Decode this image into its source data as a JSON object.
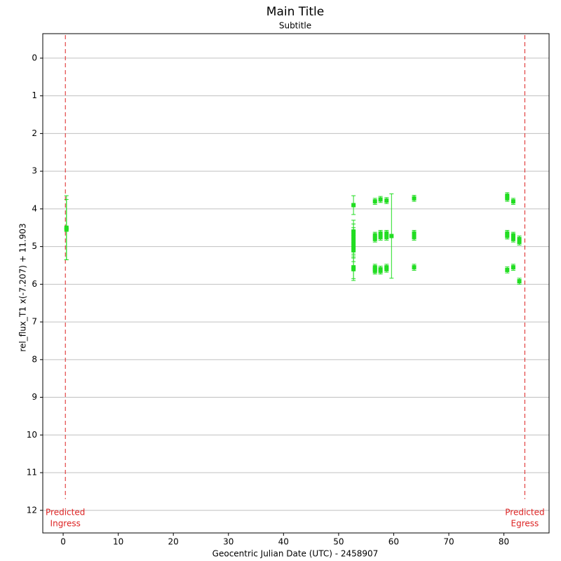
{
  "chart_data": {
    "type": "scatter",
    "title": "Main Title",
    "subtitle": "Subtitle",
    "x_label": "Geocentric Julian Date (UTC) - 2458907",
    "y_label": "rel_flux_T1 x(-7.207) + 11.903",
    "xlim": [
      -3.7,
      88.2
    ],
    "ylim": [
      -0.65,
      12.6
    ],
    "y_inverted": true,
    "xticks": [
      0,
      10,
      20,
      30,
      40,
      50,
      60,
      70,
      80
    ],
    "yticks": [
      0,
      1,
      2,
      3,
      4,
      5,
      6,
      7,
      8,
      9,
      10,
      11,
      12
    ],
    "grid": true,
    "series": [
      {
        "name": "rel_flux_T1",
        "color": "#22dd22",
        "x": [
          0.6,
          0.6,
          52.7,
          52.7,
          52.7,
          52.7,
          52.7,
          52.7,
          52.7,
          52.7,
          52.7,
          56.6,
          56.6,
          56.6,
          56.6,
          56.6,
          56.6,
          57.6,
          57.6,
          57.6,
          57.6,
          57.6,
          58.7,
          58.7,
          58.7,
          58.7,
          58.7,
          59.6,
          63.7,
          63.7,
          63.7,
          63.7,
          80.6,
          80.6,
          80.6,
          80.6,
          80.6,
          81.7,
          81.7,
          81.7,
          81.7,
          82.8,
          82.8,
          82.8
        ],
        "values": [
          4.5,
          4.55,
          3.9,
          4.6,
          4.7,
          4.8,
          4.9,
          5.0,
          5.1,
          5.55,
          5.6,
          3.8,
          4.7,
          4.8,
          5.55,
          5.6,
          5.65,
          3.75,
          4.65,
          4.75,
          5.6,
          5.65,
          3.78,
          4.65,
          4.75,
          5.55,
          5.6,
          4.72,
          3.72,
          4.65,
          4.75,
          5.55,
          3.65,
          3.72,
          4.65,
          4.72,
          5.62,
          3.8,
          4.7,
          4.8,
          5.55,
          4.8,
          4.88,
          5.92
        ],
        "errors": [
          0.85,
          0.8,
          0.25,
          0.3,
          0.3,
          0.3,
          0.3,
          0.3,
          0.3,
          0.3,
          0.3,
          0.08,
          0.08,
          0.08,
          0.08,
          0.08,
          0.08,
          0.08,
          0.08,
          0.08,
          0.08,
          0.08,
          0.08,
          0.08,
          0.08,
          0.08,
          0.08,
          1.12,
          0.08,
          0.08,
          0.08,
          0.08,
          0.08,
          0.08,
          0.08,
          0.08,
          0.08,
          0.08,
          0.08,
          0.08,
          0.08,
          0.08,
          0.08,
          0.08
        ]
      }
    ],
    "markers": [
      {
        "x": 0.4,
        "label_lines": [
          "Predicted",
          "Ingress"
        ],
        "color": "#dd2222"
      },
      {
        "x": 83.8,
        "label_lines": [
          "Predicted",
          "Egress"
        ],
        "color": "#dd2222"
      }
    ]
  }
}
